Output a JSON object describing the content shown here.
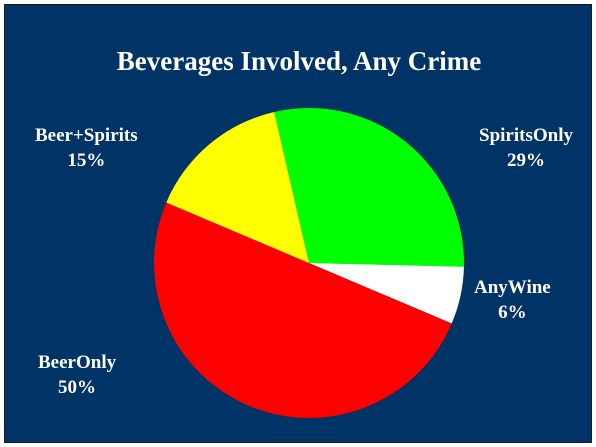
{
  "chart_data": {
    "type": "pie",
    "title": "Beverages Involved, Any Crime",
    "slices": [
      {
        "name": "SpiritsOnly",
        "value": 29,
        "label": "29%",
        "color": "#00ff00"
      },
      {
        "name": "AnyWine",
        "value": 6,
        "label": "6%",
        "color": "#ffffff"
      },
      {
        "name": "BeerOnly",
        "value": 50,
        "label": "50%",
        "color": "#ff0000"
      },
      {
        "name": "Beer+Spirits",
        "value": 15,
        "label": "15%",
        "color": "#ffff00"
      }
    ]
  },
  "colors": {
    "background": "#003366",
    "text": "#ffffff"
  }
}
